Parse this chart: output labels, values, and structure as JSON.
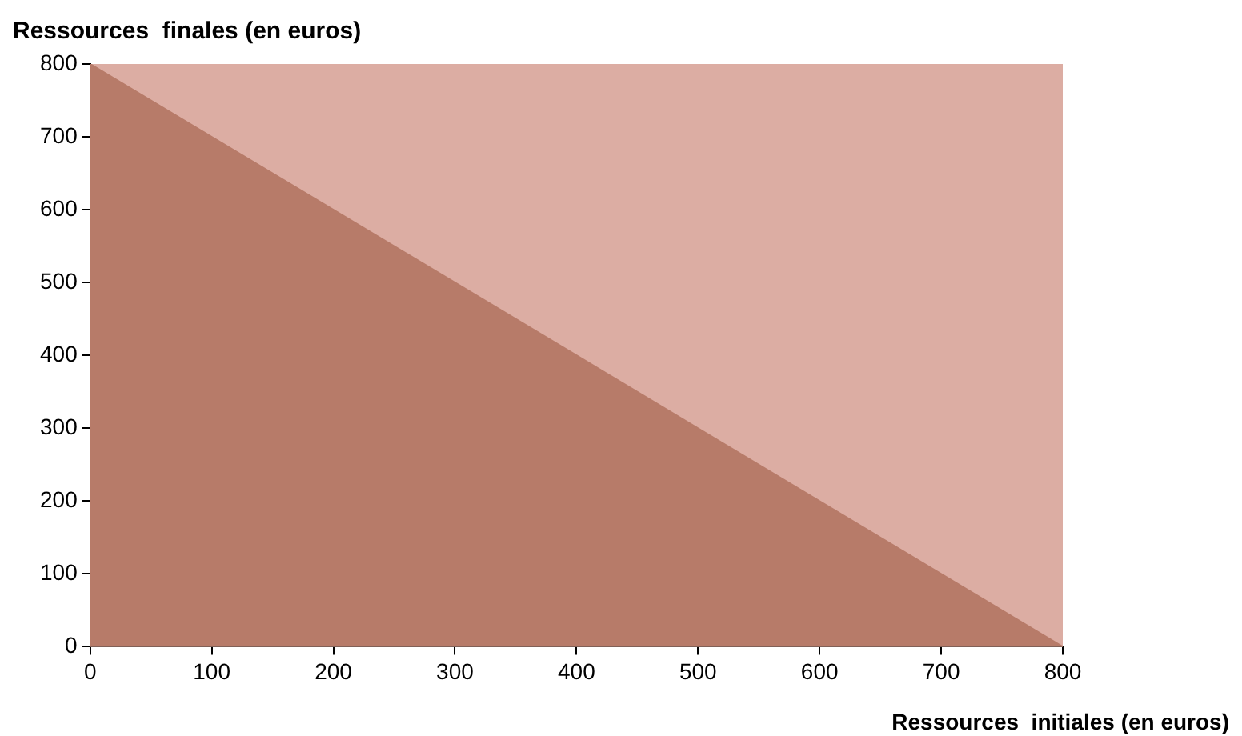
{
  "chart_data": {
    "type": "area",
    "ylabel": "Ressources  finales (en euros)",
    "xlabel": "Ressources  initiales (en euros)",
    "x": [
      0,
      100,
      200,
      300,
      400,
      500,
      600,
      700,
      800
    ],
    "series": [
      {
        "color": "#b77b69",
        "values": [
          800,
          700,
          600,
          500,
          400,
          300,
          200,
          100,
          0
        ]
      }
    ],
    "xlim": [
      0,
      800
    ],
    "xticks": [
      0,
      100,
      200,
      300,
      400,
      500,
      600,
      700,
      800
    ],
    "ylim": [
      0,
      800
    ],
    "yticks": [
      0,
      100,
      200,
      300,
      400,
      500,
      600,
      700,
      800
    ]
  }
}
